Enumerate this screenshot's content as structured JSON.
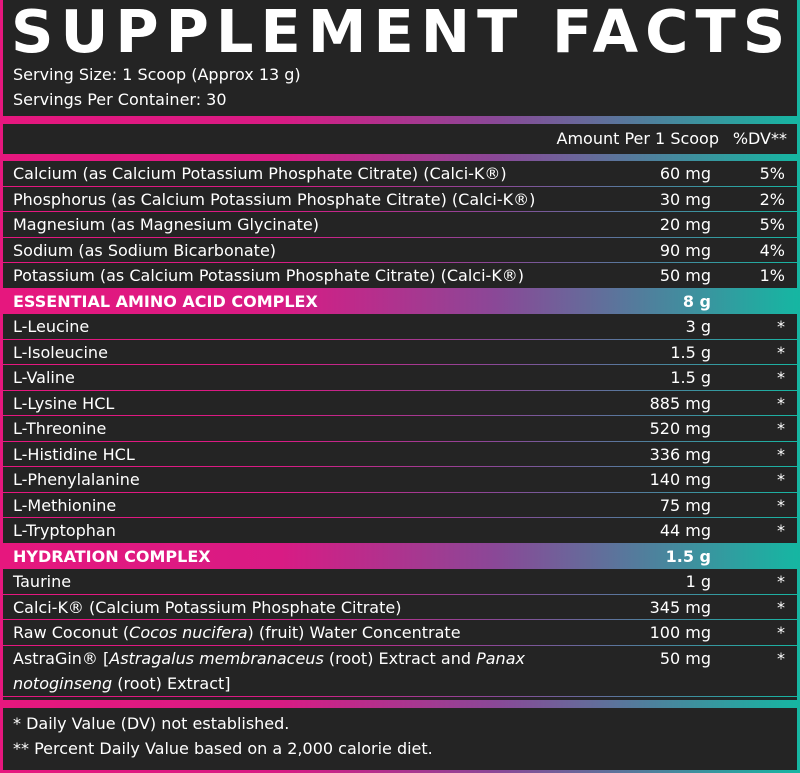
{
  "title": "SUPPLEMENT FACTS",
  "serving_size": "Serving Size: 1 Scoop (Approx 13 g)",
  "servings_per_container": "Servings Per Container: 30",
  "header": {
    "amount": "Amount Per 1 Scoop",
    "dv": "%DV**"
  },
  "sections": [
    {
      "rows": [
        {
          "name": "Calcium (as Calcium Potassium Phosphate Citrate) (Calci-K®)",
          "amount": "60 mg",
          "dv": "5%"
        },
        {
          "name": "Phosphorus (as Calcium Potassium Phosphate Citrate) (Calci-K®)",
          "amount": "30 mg",
          "dv": "2%"
        },
        {
          "name": "Magnesium (as Magnesium Glycinate)",
          "amount": "20 mg",
          "dv": "5%"
        },
        {
          "name": "Sodium (as Sodium Bicarbonate)",
          "amount": "90 mg",
          "dv": "4%"
        },
        {
          "name": "Potassium (as Calcium Potassium Phosphate Citrate) (Calci-K®)",
          "amount": "50 mg",
          "dv": "1%"
        }
      ]
    },
    {
      "name": "ESSENTIAL AMINO ACID COMPLEX",
      "amount": "8 g",
      "rows": [
        {
          "name": "L-Leucine",
          "amount": "3 g",
          "dv": "*"
        },
        {
          "name": "L-Isoleucine",
          "amount": "1.5 g",
          "dv": "*"
        },
        {
          "name": "L-Valine",
          "amount": "1.5 g",
          "dv": "*"
        },
        {
          "name": "L-Lysine HCL",
          "amount": "885 mg",
          "dv": "*"
        },
        {
          "name": "L-Threonine",
          "amount": "520 mg",
          "dv": "*"
        },
        {
          "name": "L-Histidine HCL",
          "amount": "336 mg",
          "dv": "*"
        },
        {
          "name": "L-Phenylalanine",
          "amount": "140 mg",
          "dv": "*"
        },
        {
          "name": "L-Methionine",
          "amount": "75 mg",
          "dv": "*"
        },
        {
          "name": "L-Tryptophan",
          "amount": "44 mg",
          "dv": "*"
        }
      ]
    },
    {
      "name": "HYDRATION COMPLEX",
      "amount": "1.5 g",
      "rows": [
        {
          "name": "Taurine",
          "amount": "1 g",
          "dv": "*"
        },
        {
          "name": "Calci-K® (Calcium Potassium Phosphate Citrate)",
          "amount": "345 mg",
          "dv": "*"
        },
        {
          "name": [
            {
              "text": "Raw Coconut ("
            },
            {
              "text": "Cocos nucifera",
              "italic": true
            },
            {
              "text": ") (fruit) Water Concentrate"
            }
          ],
          "amount": "100 mg",
          "dv": "*"
        },
        {
          "name": [
            {
              "text": "AstraGin® ["
            },
            {
              "text": "Astragalus membranaceus",
              "italic": true
            },
            {
              "text": " (root) Extract and "
            },
            {
              "text": "Panax notoginseng",
              "italic": true
            },
            {
              "text": " (root) Extract]"
            }
          ],
          "amount": "50 mg",
          "dv": "*"
        }
      ]
    }
  ],
  "footnotes": [
    "* Daily Value (DV) not established.",
    "** Percent Daily Value based on a 2,000 calorie diet."
  ]
}
